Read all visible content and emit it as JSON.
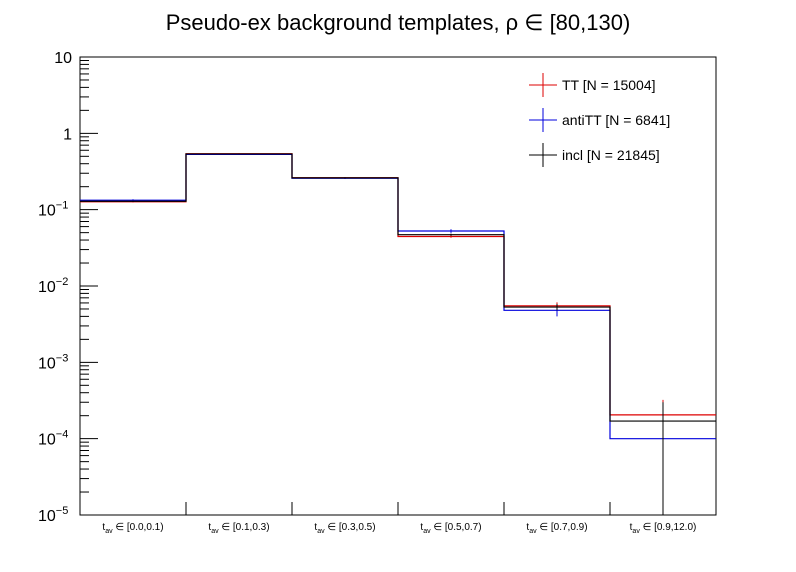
{
  "chart_data": {
    "type": "histogram",
    "title": "Pseudo-ex background templates, ρ ∈ [80,130)",
    "y_scale": "log",
    "ylim": [
      1e-05,
      10
    ],
    "y_ticks": [
      {
        "value": 10,
        "base": "10",
        "exp": ""
      },
      {
        "value": 1,
        "base": "1",
        "exp": ""
      },
      {
        "value": 0.1,
        "base": "10",
        "exp": "−1"
      },
      {
        "value": 0.01,
        "base": "10",
        "exp": "−2"
      },
      {
        "value": 0.001,
        "base": "10",
        "exp": "−3"
      },
      {
        "value": 0.0001,
        "base": "10",
        "exp": "−4"
      },
      {
        "value": 1e-05,
        "base": "10",
        "exp": "−5"
      }
    ],
    "categories": [
      {
        "var": "t",
        "sub": "av",
        "range": " ∈ [0.0,0.1)"
      },
      {
        "var": "t",
        "sub": "av",
        "range": " ∈ [0.1,0.3)"
      },
      {
        "var": "t",
        "sub": "av",
        "range": " ∈ [0.3,0.5)"
      },
      {
        "var": "t",
        "sub": "av",
        "range": " ∈ [0.5,0.7)"
      },
      {
        "var": "t",
        "sub": "av",
        "range": " ∈ [0.7,0.9)"
      },
      {
        "var": "t",
        "sub": "av",
        "range": " ∈ [0.9,12.0)"
      }
    ],
    "series": [
      {
        "name": "TT",
        "legend": "TT [N = 15004]",
        "color": "#dd0000",
        "values": [
          0.127,
          0.54,
          0.262,
          0.0445,
          0.0055,
          0.000205
        ],
        "err_lo": [
          0.003,
          0.006,
          0.004,
          0.0017,
          0.0006,
          0.000117
        ],
        "err_hi": [
          0.003,
          0.006,
          0.004,
          0.0017,
          0.0006,
          0.000117
        ]
      },
      {
        "name": "antiTT",
        "legend": "antiTT [N = 6841]",
        "color": "#0000dd",
        "values": [
          0.133,
          0.53,
          0.258,
          0.0525,
          0.0048,
          0.0001
        ],
        "err_lo": [
          0.004,
          0.009,
          0.006,
          0.0028,
          0.0008,
          0.0001
        ],
        "err_hi": [
          0.004,
          0.009,
          0.006,
          0.0028,
          0.0008,
          0.0001
        ]
      },
      {
        "name": "incl",
        "legend": "incl [N = 21845]",
        "color": "#000000",
        "values": [
          0.129,
          0.537,
          0.261,
          0.047,
          0.0053,
          0.00017
        ],
        "err_lo": [
          0.0025,
          0.005,
          0.0035,
          0.0015,
          0.0005,
          0.00017
        ],
        "err_hi": [
          0.0025,
          0.005,
          0.0035,
          0.0015,
          0.0005,
          0.00013
        ]
      }
    ],
    "legend_position": "top-right"
  }
}
